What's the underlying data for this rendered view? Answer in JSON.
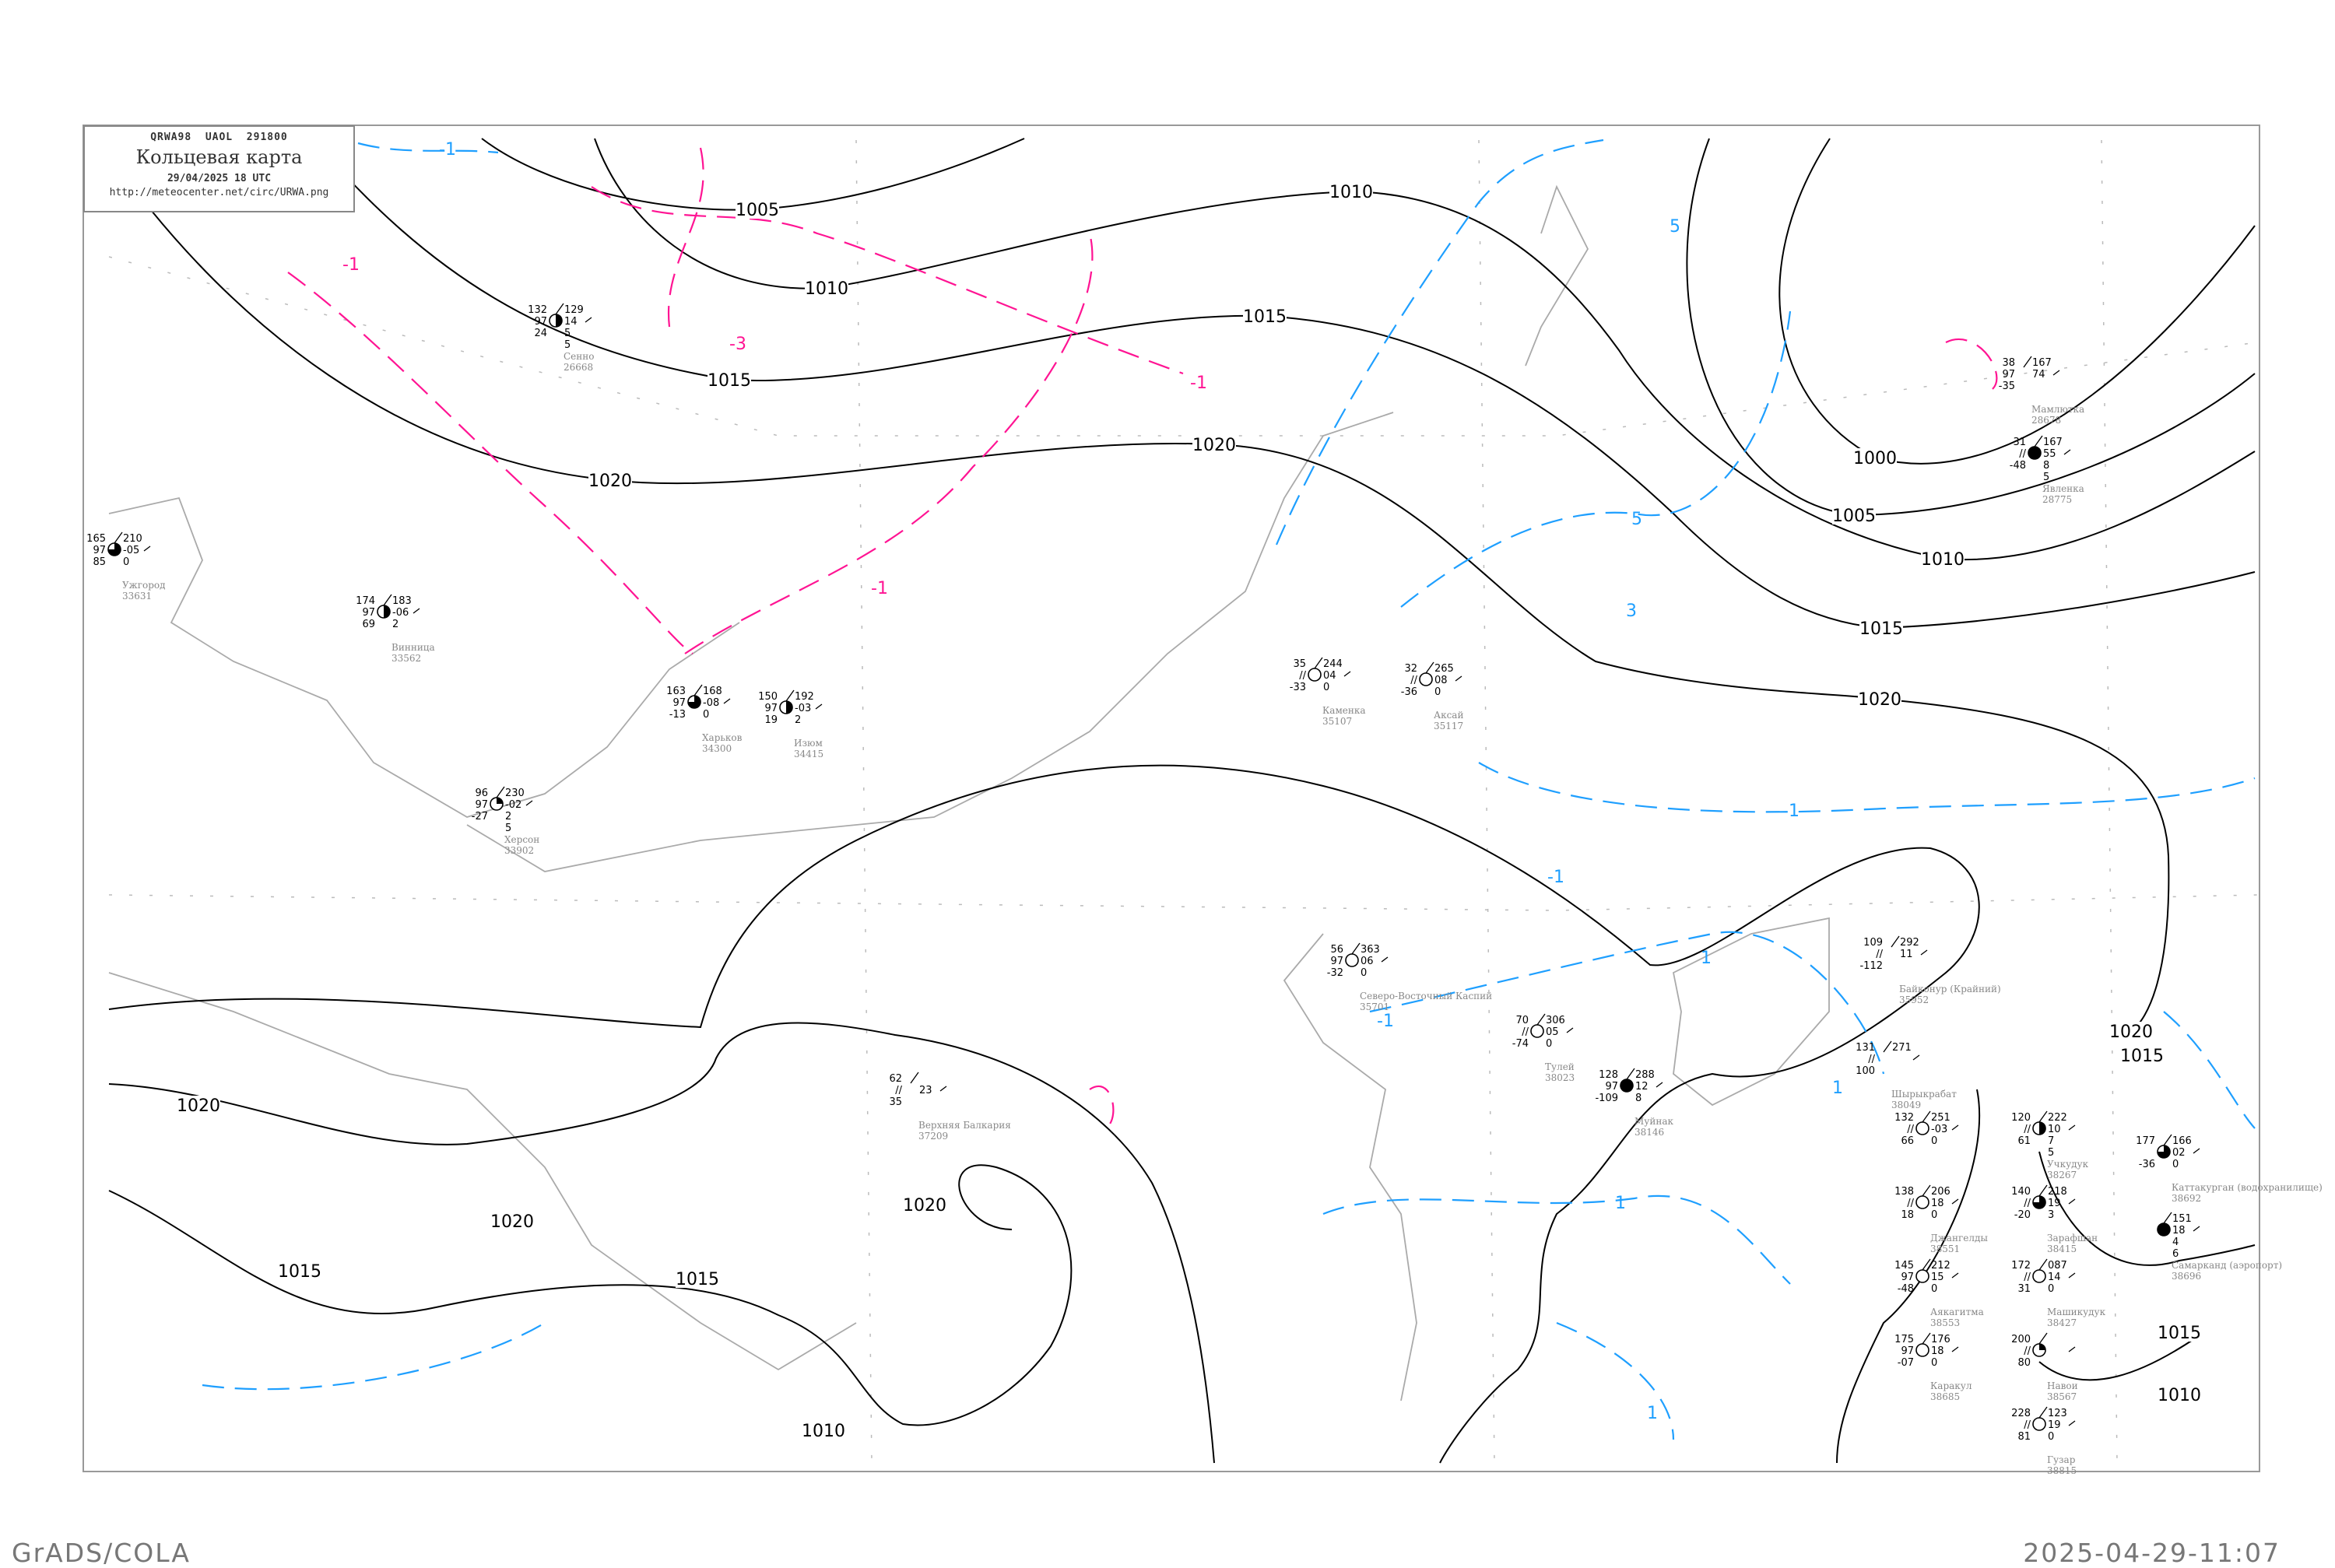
{
  "header": {
    "code": "QRWA98  UAOL  291800",
    "title": "Кольцевая карта",
    "datetime": "29/04/2025 18 UTC",
    "url": "http://meteocenter.net/circ/URWA.png"
  },
  "footer": {
    "left": "GrADS/COLA",
    "right": "2025-04-29-11:07"
  },
  "colors": {
    "isobar": "#000000",
    "temp_negative": "#ff1493",
    "temp_positive": "#1e9fff",
    "coast": "#aaaaaa"
  },
  "isobar_labels": [
    "1005",
    "1010",
    "1015",
    "1020",
    "1010",
    "1015",
    "1020",
    "1000",
    "1005",
    "1010",
    "1015",
    "1020",
    "1020",
    "1020",
    "1015",
    "1015",
    "1020",
    "1010",
    "1020",
    "1015",
    "1015",
    "1010"
  ],
  "temp_labels": [
    "-1",
    "-1",
    "-3",
    "-1",
    "-1",
    "5",
    "5",
    "3",
    "1",
    "-1",
    "1",
    "1",
    "1",
    "1",
    "-1"
  ],
  "stations": [
    {
      "name": "Ужгород",
      "id": "33631",
      "tl": "165",
      "ml": "97",
      "bl": "85",
      "tr": "210",
      "mr": "-05",
      "br": "0",
      "extra": "",
      "cover": 0.75
    },
    {
      "name": "Винница",
      "id": "33562",
      "tl": "174",
      "ml": "97",
      "bl": "69",
      "tr": "183",
      "mr": "-06",
      "br": "2",
      "extra": "",
      "cover": 0.5
    },
    {
      "name": "Сенно",
      "id": "26668",
      "tl": "132",
      "ml": "97",
      "bl": "24",
      "tr": "129",
      "mr": "14",
      "br": "5",
      "extra": "5",
      "cover": 0.5
    },
    {
      "name": "Харьков",
      "id": "34300",
      "tl": "163",
      "ml": "97",
      "bl": "-13",
      "tr": "168",
      "mr": "-08",
      "br": "0",
      "extra": "",
      "cover": 0.75
    },
    {
      "name": "Изюм",
      "id": "34415",
      "tl": "150",
      "ml": "97",
      "bl": "19",
      "tr": "192",
      "mr": "-03",
      "br": "2",
      "extra": "",
      "cover": 0.5
    },
    {
      "name": "Херсон",
      "id": "33902",
      "tl": "96",
      "ml": "97",
      "bl": "-27",
      "tr": "230",
      "mr": "-02",
      "br": "2",
      "extra": "5",
      "cover": 0.25
    },
    {
      "name": "Каменка",
      "id": "35107",
      "tl": "35",
      "ml": "//",
      "bl": "-33",
      "tr": "244",
      "mr": "04",
      "br": "0",
      "extra": "",
      "cover": 0
    },
    {
      "name": "Аксай",
      "id": "35117",
      "tl": "32",
      "ml": "//",
      "bl": "-36",
      "tr": "265",
      "mr": "08",
      "br": "0",
      "extra": "",
      "cover": 0
    },
    {
      "name": "Мамлютка",
      "id": "28678",
      "tl": "38",
      "ml": "97",
      "bl": "-35",
      "tr": "167",
      "mr": "74",
      "br": "",
      "extra": "",
      "cover": -1
    },
    {
      "name": "Явленка",
      "id": "28775",
      "tl": "31",
      "ml": "//",
      "bl": "-48",
      "tr": "167",
      "mr": "55",
      "br": "8",
      "extra": "5",
      "cover": 1
    },
    {
      "name": "Северо-Восточный Каспий",
      "id": "35701",
      "tl": "56",
      "ml": "97",
      "bl": "-32",
      "tr": "363",
      "mr": "06",
      "br": "0",
      "extra": "",
      "cover": 0
    },
    {
      "name": "Тулей",
      "id": "38023",
      "tl": "70",
      "ml": "//",
      "bl": "-74",
      "tr": "306",
      "mr": "05",
      "br": "0",
      "extra": "",
      "cover": 0
    },
    {
      "name": "Муйнак",
      "id": "38146",
      "tl": "128",
      "ml": "97",
      "bl": "-109",
      "tr": "288",
      "mr": "12",
      "br": "8",
      "extra": "",
      "cover": 1
    },
    {
      "name": "Верхняя Балкария",
      "id": "37209",
      "tl": "62",
      "ml": "//",
      "bl": "35",
      "tr": "",
      "mr": "23",
      "br": "",
      "extra": "",
      "cover": -1
    },
    {
      "name": "Байконур (Крайний)",
      "id": "35952",
      "tl": "109",
      "ml": "//",
      "bl": "-112",
      "tr": "292",
      "mr": "11",
      "br": "",
      "extra": "",
      "cover": -1
    },
    {
      "name": "Шырыкрабат",
      "id": "38049",
      "tl": "131",
      "ml": "//",
      "bl": "100",
      "tr": "271",
      "mr": "",
      "br": "",
      "extra": "",
      "cover": -1
    },
    {
      "name": "",
      "id": "",
      "tl": "132",
      "ml": "//",
      "bl": "66",
      "tr": "251",
      "mr": "-03",
      "br": "0",
      "extra": "",
      "cover": 0
    },
    {
      "name": "Учкудук",
      "id": "38267",
      "tl": "120",
      "ml": "//",
      "bl": "61",
      "tr": "222",
      "mr": "10",
      "br": "7",
      "extra": "5",
      "cover": 0.5
    },
    {
      "name": "Зарафшан",
      "id": "38415",
      "tl": "140",
      "ml": "//",
      "bl": "-20",
      "tr": "218",
      "mr": "19",
      "br": "3",
      "extra": "",
      "cover": 0.75
    },
    {
      "name": "Джангелды",
      "id": "38551",
      "tl": "138",
      "ml": "//",
      "bl": "18",
      "tr": "206",
      "mr": "18",
      "br": "0",
      "extra": "",
      "cover": 0
    },
    {
      "name": "Аякагитма",
      "id": "38553",
      "tl": "145",
      "ml": "97",
      "bl": "-48",
      "tr": "212",
      "mr": "15",
      "br": "0",
      "extra": "",
      "cover": 0
    },
    {
      "name": "Машикудук",
      "id": "38427",
      "tl": "172",
      "ml": "//",
      "bl": "31",
      "tr": "087",
      "mr": "14",
      "br": "0",
      "extra": "",
      "cover": 0
    },
    {
      "name": "Навои",
      "id": "38567",
      "tl": "200",
      "ml": "//",
      "bl": "80",
      "tr": "",
      "mr": "",
      "br": "",
      "extra": "",
      "cover": 0.25
    },
    {
      "name": "Каттакурган (водохранилище)",
      "id": "38692",
      "tl": "177",
      "ml": "",
      "bl": "-36",
      "tr": "166",
      "mr": "02",
      "br": "0",
      "extra": "",
      "cover": 0.75
    },
    {
      "name": "Самарканд (аэропорт)",
      "id": "38696",
      "tl": "",
      "ml": "",
      "bl": "",
      "tr": "151",
      "mr": "18",
      "br": "4",
      "extra": "6",
      "cover": 1
    },
    {
      "name": "Каракул",
      "id": "38685",
      "tl": "175",
      "ml": "97",
      "bl": "-07",
      "tr": "176",
      "mr": "18",
      "br": "0",
      "extra": "",
      "cover": 0
    },
    {
      "name": "Гузар",
      "id": "38815",
      "tl": "228",
      "ml": "//",
      "bl": "81",
      "tr": "123",
      "mr": "19",
      "br": "0",
      "extra": "",
      "cover": 0
    }
  ]
}
